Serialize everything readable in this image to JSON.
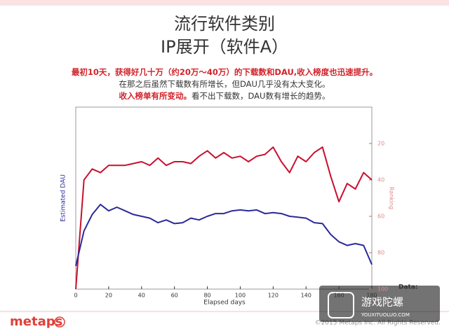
{
  "chart_data": {
    "type": "line",
    "title": "流行软件类别",
    "subtitle": "IP展开（软件A）",
    "notes": [
      [
        {
          "text": "最初10天，获得好几十万（约20万～40万）的下载数和DAU,收入榜度也迅速提升。",
          "color": "#d2232a"
        }
      ],
      [
        {
          "text": "在那之后虽然下载数有所增长，但DAU几乎没有太大变化。",
          "color": "#333333"
        }
      ],
      [
        {
          "text": "收入榜单有所变动。",
          "color": "#d2232a"
        },
        {
          "text": "看不出下载数，DAU数有增长的趋势。",
          "color": "#333333"
        }
      ]
    ],
    "x_label": "Elapsed days",
    "y_label": "Estimated DAU",
    "y2_label": "Ranking",
    "x": [
      0,
      5,
      10,
      15,
      20,
      25,
      30,
      35,
      40,
      45,
      50,
      55,
      60,
      65,
      70,
      75,
      80,
      85,
      90,
      95,
      100,
      105,
      110,
      115,
      120,
      125,
      130,
      135,
      140,
      145,
      150,
      155,
      160,
      165,
      170,
      175,
      180
    ],
    "xlim": [
      0,
      180
    ],
    "xticks": [
      0,
      20,
      40,
      60,
      80,
      100,
      120,
      140,
      160,
      180
    ],
    "ylim": [
      0,
      100
    ],
    "y2lim": [
      100,
      0
    ],
    "y2ticks": [
      20,
      40,
      60,
      80,
      100
    ],
    "series": [
      {
        "name": "Ranking",
        "axis": "y2",
        "color": "#c8102e",
        "values": [
          100,
          40,
          34,
          36,
          32,
          32,
          32,
          31,
          30,
          32,
          28,
          32,
          30,
          30,
          31,
          27,
          24,
          28,
          25,
          28,
          27,
          30,
          27,
          26,
          22,
          30,
          36,
          27,
          30,
          25,
          22,
          38,
          52,
          42,
          45,
          36,
          40
        ]
      },
      {
        "name": "Estimated DAU",
        "color": "#2a2a9a",
        "values": [
          12.7,
          32,
          41,
          46.5,
          43,
          45,
          43,
          41,
          40,
          39,
          36.5,
          38,
          36,
          36.5,
          39,
          38,
          40,
          41.5,
          41.5,
          43,
          43.5,
          43,
          43.5,
          41.5,
          42,
          41.5,
          40,
          39.5,
          39,
          36.5,
          36,
          30,
          26,
          24,
          25,
          24,
          13.5
        ]
      }
    ],
    "footer_logo": "metaps",
    "copyright": "©2015 Metaps Inc. All Rights Reserved.",
    "source": "Data:",
    "watermark": "游戏陀螺",
    "watermark_url": "YOUXITUOLUO.COM"
  }
}
